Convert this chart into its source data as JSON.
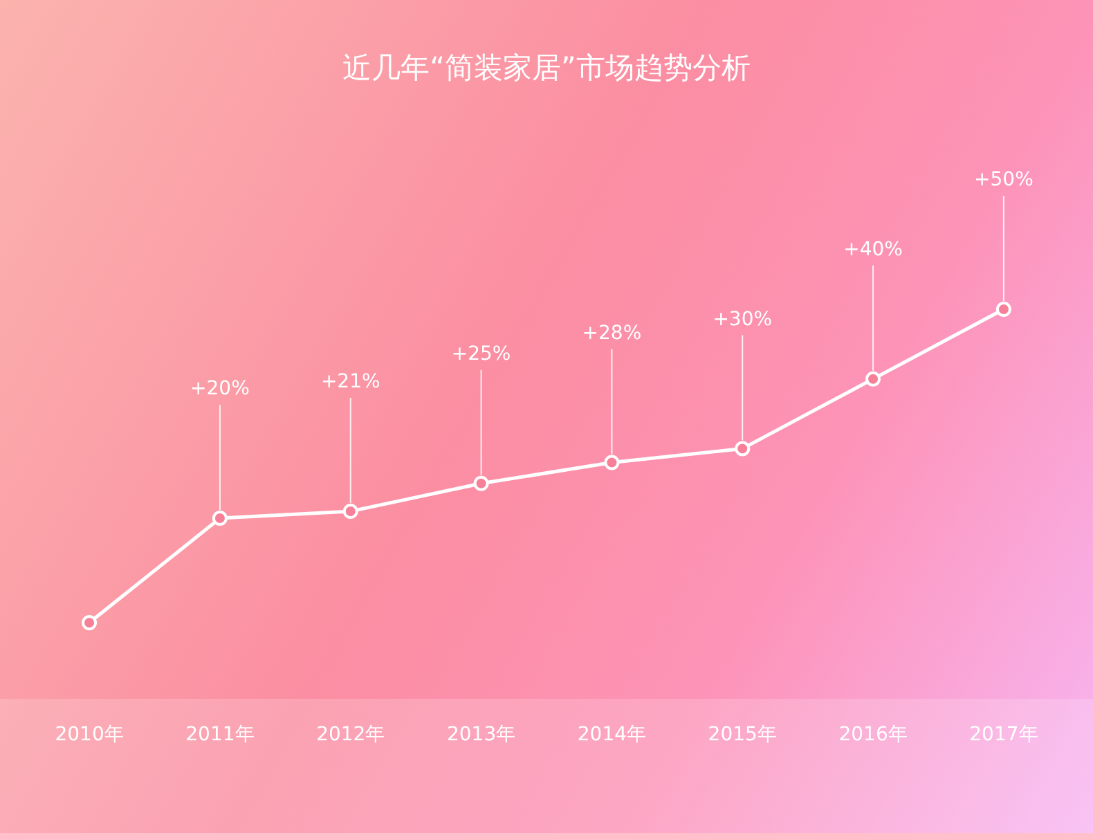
{
  "chart_data": {
    "type": "line",
    "title": "近几年“简装家居”市场趋势分析",
    "categories": [
      "2010年",
      "2011年",
      "2012年",
      "2013年",
      "2014年",
      "2015年",
      "2016年",
      "2017年"
    ],
    "series": [
      {
        "color": "#ffffff",
        "values": [
          5,
          20,
          21,
          25,
          28,
          30,
          40,
          50
        ],
        "value_labels": [
          null,
          "+20%",
          "+21%",
          "+25%",
          "+28%",
          "+30%",
          "+40%",
          "+50%"
        ]
      }
    ],
    "marker": "circle",
    "line_style": "solid"
  }
}
